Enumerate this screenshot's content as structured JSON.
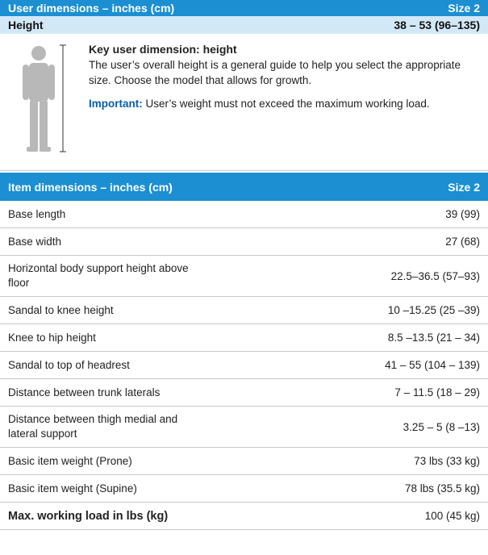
{
  "user_header": {
    "title": "User dimensions – inches (cm)",
    "size": "Size 2"
  },
  "height_row": {
    "label": "Height",
    "value": "38 – 53 (96–135)"
  },
  "info": {
    "title": "Key user dimension: height",
    "text": "The user’s overall height is a general guide to help you select the appropriate size. Choose the model that allows for growth.",
    "important_label": "Important:",
    "important_text": "User’s weight must not exceed the maximum working load."
  },
  "item_header": {
    "title": "Item dimensions – inches (cm)",
    "size": "Size 2"
  },
  "table": {
    "rows": [
      [
        "Base length",
        "39 (99)"
      ],
      [
        "Base width",
        "27 (68)"
      ],
      [
        "Horizontal body support height above floor",
        "22.5–36.5 (57–93)"
      ],
      [
        "Sandal to knee height",
        "10 –15.25 (25 –39)"
      ],
      [
        "Knee to hip height",
        "8.5 –13.5 (21 – 34)"
      ],
      [
        "Sandal to top of headrest",
        "41 – 55 (104 – 139)"
      ],
      [
        "Distance between trunk laterals",
        "7 – 11.5 (18 – 29)"
      ],
      [
        "Distance between thigh medial and lateral support",
        "3.25 – 5 (8 –13)"
      ],
      [
        "Basic item weight (Prone)",
        "73 lbs  (33 kg)"
      ],
      [
        "Basic item weight (Supine)",
        "78 lbs  (35.5 kg)"
      ],
      [
        "Max. working load in lbs (kg)",
        "100 (45 kg)"
      ]
    ]
  }
}
